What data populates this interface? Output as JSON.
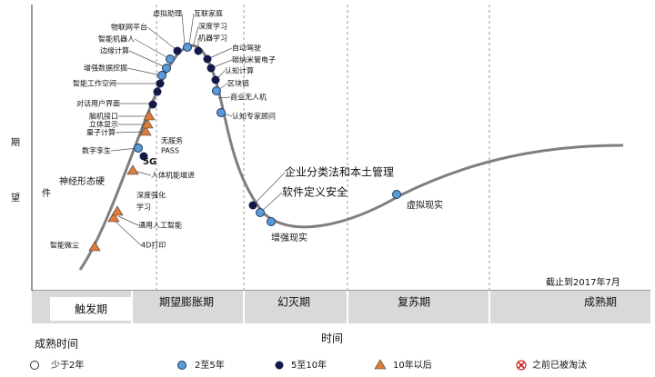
{
  "y_axis_label": [
    "期",
    "望"
  ],
  "x_axis_label": "时间",
  "phases": [
    "触发期",
    "期望膨胀期",
    "幻灭期",
    "复苏期",
    "成熟期"
  ],
  "note": "截止到2017年7月",
  "labels": [
    "虚拟助理",
    "互联家庭",
    "物联网平台",
    "深度学习",
    "智能机器人",
    "机器学习",
    "边缘计算",
    "自动驾驶",
    "碳纳米管电子",
    "增强数据挖掘",
    "认知计算",
    "智能工作空间",
    "区块链",
    "商业无人机",
    "对话用户界面",
    "认知专家顾问",
    "脑机接口",
    "立体显示",
    "量子计算",
    "无服务",
    "PASS",
    "数字孪生",
    "5G",
    "人体机能增进",
    "神经形态硬",
    "件",
    "深度强化",
    "学习",
    "通用人工智能",
    "4D打印",
    "智能微尘",
    "企业分类法和本土管理",
    "软件定义安全",
    "虚拟现实",
    "增强现实"
  ],
  "legend": {
    "title": "成熟时间",
    "items": [
      "少于2年",
      "2至5年",
      "5至10年",
      "10年以后",
      "之前已被淘汰"
    ]
  }
}
